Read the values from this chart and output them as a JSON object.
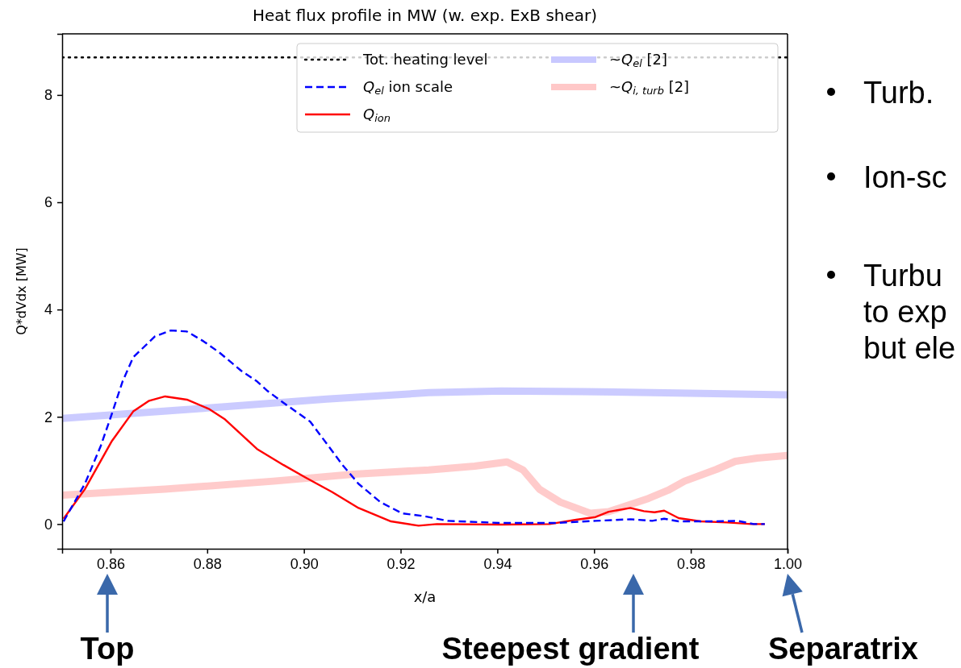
{
  "chart_data": {
    "type": "line",
    "title": "Heat flux profile in MW (w. exp. ExB shear)",
    "xlabel": "x/a",
    "ylabel": "Q*dVdx [MW]",
    "xlim": [
      0.85,
      1.0
    ],
    "xticks": [
      {
        "value": 0.86,
        "label": "0.86"
      },
      {
        "value": 0.88,
        "label": "0.88"
      },
      {
        "value": 0.9,
        "label": "0.90"
      },
      {
        "value": 0.92,
        "label": "0.92"
      },
      {
        "value": 0.94,
        "label": "0.94"
      },
      {
        "value": 0.96,
        "label": "0.96"
      },
      {
        "value": 0.98,
        "label": "0.98"
      },
      {
        "value": 1.0,
        "label": "1.00"
      }
    ],
    "ylim": [
      -0.46,
      9.14
    ],
    "yticks": [
      0,
      2,
      4,
      6,
      8
    ],
    "legend": "top right",
    "ref_lines": [
      {
        "axis": "y",
        "value": 8.7,
        "label": "Tot. heating level",
        "color": "#000000",
        "line_style": "dotted"
      }
    ],
    "series": [
      {
        "name": "Q$_{el}$ ion scale",
        "color": "#0000ff",
        "line_style": "dashed",
        "x": [
          0.8503,
          0.8547,
          0.858,
          0.8603,
          0.8625,
          0.8647,
          0.8692,
          0.8725,
          0.8758,
          0.8792,
          0.8825,
          0.887,
          0.8903,
          0.8925,
          0.8958,
          0.9013,
          0.9047,
          0.908,
          0.9113,
          0.9158,
          0.9203,
          0.9247,
          0.9297,
          0.9408,
          0.952,
          0.9603,
          0.9675,
          0.972,
          0.9745,
          0.9775,
          0.9853,
          0.9897,
          0.993,
          0.9953
        ],
        "values": [
          0.05,
          0.75,
          1.46,
          2.06,
          2.66,
          3.11,
          3.5,
          3.61,
          3.59,
          3.41,
          3.2,
          2.86,
          2.66,
          2.48,
          2.26,
          1.91,
          1.5,
          1.1,
          0.75,
          0.41,
          0.2,
          0.15,
          0.06,
          0.02,
          0.02,
          0.06,
          0.09,
          0.06,
          0.1,
          0.05,
          0.05,
          0.06,
          0.0,
          0.0
        ]
      },
      {
        "name": "Q$_{ion}$",
        "color": "#ff0000",
        "line_style": "solid",
        "x": [
          0.8503,
          0.8547,
          0.8603,
          0.8647,
          0.868,
          0.8713,
          0.8758,
          0.8803,
          0.8837,
          0.8903,
          0.8958,
          0.9003,
          0.9058,
          0.9113,
          0.918,
          0.9237,
          0.9275,
          0.9408,
          0.9508,
          0.9563,
          0.9603,
          0.963,
          0.9675,
          0.9703,
          0.9725,
          0.9745,
          0.9775,
          0.982,
          0.9875,
          0.9925,
          0.9953
        ],
        "values": [
          0.1,
          0.65,
          1.55,
          2.1,
          2.3,
          2.38,
          2.32,
          2.15,
          1.95,
          1.4,
          1.1,
          0.87,
          0.6,
          0.3,
          0.05,
          -0.03,
          0.0,
          -0.01,
          0.0,
          0.08,
          0.13,
          0.23,
          0.3,
          0.24,
          0.22,
          0.25,
          0.11,
          0.05,
          0.03,
          0.0,
          0.0
        ]
      },
      {
        "name": "~Q$_{el}$ [2]",
        "color": "#c8c8ff",
        "line_style": "solid",
        "x": [
          0.85,
          0.8825,
          0.9047,
          0.9258,
          0.9408,
          0.9575,
          0.9797,
          1.0
        ],
        "values": [
          1.97,
          2.18,
          2.33,
          2.45,
          2.48,
          2.47,
          2.44,
          2.41
        ]
      },
      {
        "name": "~Q$_{i, turb}$ [2]",
        "color": "#ffc8c8",
        "line_style": "solid",
        "x": [
          0.85,
          0.8713,
          0.8937,
          0.9103,
          0.9258,
          0.9353,
          0.942,
          0.9453,
          0.9487,
          0.953,
          0.9592,
          0.963,
          0.9713,
          0.9753,
          0.9787,
          0.9853,
          0.9892,
          0.9937,
          1.0
        ],
        "values": [
          0.54,
          0.65,
          0.8,
          0.93,
          1.01,
          1.08,
          1.16,
          1.01,
          0.65,
          0.41,
          0.2,
          0.23,
          0.48,
          0.63,
          0.8,
          1.02,
          1.17,
          1.23,
          1.28
        ]
      }
    ],
    "annotations": [
      "Turb.",
      "Ion-sc",
      "Turbu",
      "to exp",
      "but ele",
      "Top",
      "Steepest gradient",
      "Separatrix"
    ]
  }
}
